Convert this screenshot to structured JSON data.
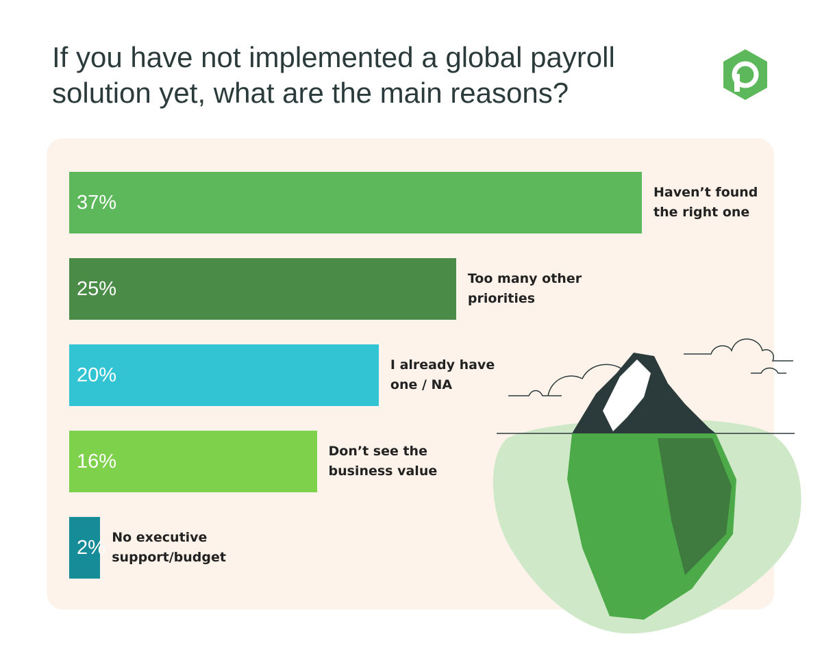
{
  "chart_data": {
    "type": "bar",
    "orientation": "horizontal",
    "title": "If you have not implemented a global payroll solution yet, what are the main reasons?",
    "categories": [
      "Haven’t found the right one",
      "Too many other priorities",
      "I already have one / NA",
      "Don’t see the business value",
      "No executive support/budget"
    ],
    "values": [
      37,
      25,
      20,
      16,
      2
    ],
    "value_labels": [
      "37%",
      "25%",
      "20%",
      "16%",
      "2%"
    ],
    "colors": [
      "#5cb85a",
      "#4a8c47",
      "#33c4d4",
      "#7ed14b",
      "#178c99"
    ]
  }
}
